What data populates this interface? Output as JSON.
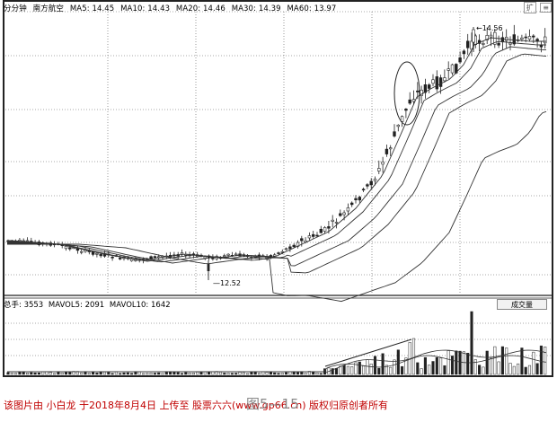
{
  "chart_header": {
    "period": "分分钟",
    "stock_name": "南方航空",
    "ma5": "MA5: 14.45",
    "ma10": "MA10: 14.43",
    "ma20": "MA20: 14.46",
    "ma30": "MA30: 14.39",
    "ma60": "MA60: 13.97"
  },
  "top_buttons": [
    "扩",
    "≡"
  ],
  "volume_header": {
    "title": "总手: 3553",
    "mavol5": "MAVOL5: 2091",
    "mavol10": "MAVOL10: 1642"
  },
  "volume_button_label": "成交量",
  "annotations": {
    "low_label": "12.52",
    "high_label": "14.56"
  },
  "footer": {
    "caption": "该图片由 小白龙 于2018年8月4日 上传至 股票六六(www.gp66.cn) 版权归原创者所有",
    "figure_label": "图5—15"
  },
  "colors": {
    "candle": "#222222",
    "ma_line": "#333333",
    "grid": "#555555",
    "caption": "#c00000"
  }
}
